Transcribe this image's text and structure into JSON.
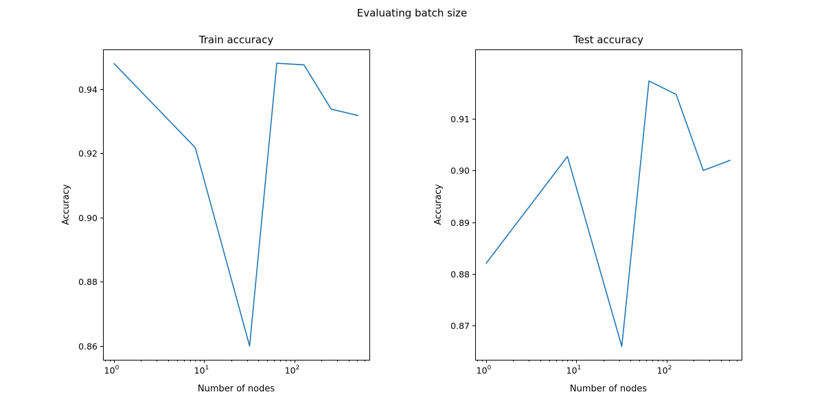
{
  "figure": {
    "suptitle": "Evaluating batch size"
  },
  "chart_data": [
    {
      "type": "line",
      "title": "Train accuracy",
      "xlabel": "Number of nodes",
      "ylabel": "Accuracy",
      "x_scale": "log",
      "x_base": 10,
      "x_major_exponents": [
        0,
        1,
        2
      ],
      "xlim": [
        0.76,
        680
      ],
      "ylim": [
        0.8557,
        0.9524
      ],
      "y_ticks": [
        0.86,
        0.88,
        0.9,
        0.92,
        0.94
      ],
      "y_tick_labels": [
        "0.86",
        "0.88",
        "0.90",
        "0.92",
        "0.94"
      ],
      "grid": false,
      "x": [
        1,
        8,
        32,
        64,
        128,
        256,
        512
      ],
      "series": [
        {
          "values": [
            0.9481,
            0.9218,
            0.86,
            0.9481,
            0.9476,
            0.9338,
            0.9318
          ],
          "color": "#1f77b4"
        }
      ]
    },
    {
      "type": "line",
      "title": "Test accuracy",
      "xlabel": "Number of nodes",
      "ylabel": "Accuracy",
      "x_scale": "log",
      "x_base": 10,
      "x_major_exponents": [
        0,
        1,
        2
      ],
      "xlim": [
        0.76,
        680
      ],
      "ylim": [
        0.8634,
        0.9234
      ],
      "y_ticks": [
        0.87,
        0.88,
        0.89,
        0.9,
        0.91
      ],
      "y_tick_labels": [
        "0.87",
        "0.88",
        "0.89",
        "0.90",
        "0.91"
      ],
      "grid": false,
      "x": [
        1,
        8,
        32,
        64,
        128,
        256,
        512
      ],
      "series": [
        {
          "values": [
            0.882,
            0.9027,
            0.866,
            0.9173,
            0.9147,
            0.9,
            0.902
          ],
          "color": "#1f77b4"
        }
      ]
    }
  ]
}
